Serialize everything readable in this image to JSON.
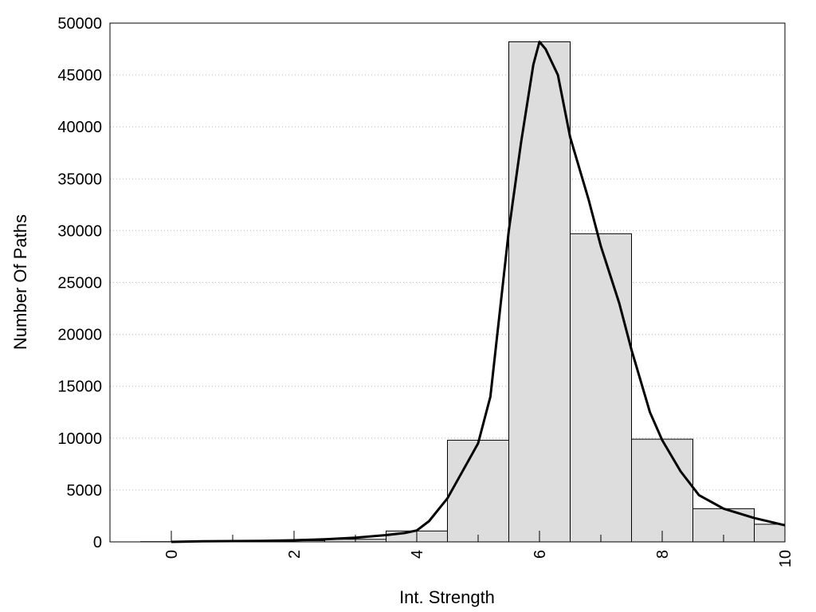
{
  "chart_data": {
    "type": "bar",
    "xlabel": "Int. Strength",
    "ylabel": "Number Of Paths",
    "xlim": [
      -1,
      10
    ],
    "ylim": [
      0,
      50000
    ],
    "xticks": [
      0,
      2,
      4,
      6,
      8,
      10
    ],
    "xtick_labels": [
      "0",
      "2",
      "4",
      "6",
      "8",
      "10"
    ],
    "yticks": [
      0,
      5000,
      10000,
      15000,
      20000,
      25000,
      30000,
      35000,
      40000,
      45000,
      50000
    ],
    "ytick_labels": [
      "0",
      "5000",
      "10000",
      "15000",
      "20000",
      "25000",
      "30000",
      "35000",
      "40000",
      "45000",
      "50000"
    ],
    "grid": "horizontal dotted",
    "bars": {
      "centers": [
        0,
        1,
        2,
        3,
        4,
        5,
        6,
        7,
        8,
        9,
        10
      ],
      "width": 1,
      "values": [
        20,
        60,
        120,
        250,
        1050,
        9800,
        48200,
        29700,
        9900,
        3200,
        1700
      ]
    },
    "curve": {
      "x": [
        0,
        0.5,
        1,
        1.5,
        2,
        2.5,
        3,
        3.5,
        3.8,
        4,
        4.2,
        4.5,
        5,
        5.2,
        5.5,
        5.7,
        5.9,
        6,
        6.1,
        6.3,
        6.5,
        6.8,
        7,
        7.3,
        7.5,
        7.8,
        8,
        8.3,
        8.6,
        9,
        9.5,
        10
      ],
      "y": [
        0,
        50,
        80,
        100,
        150,
        250,
        400,
        650,
        850,
        1100,
        2000,
        4200,
        9500,
        14000,
        30000,
        38500,
        46000,
        48200,
        47500,
        45000,
        39000,
        33000,
        28500,
        23000,
        18500,
        12500,
        9800,
        6800,
        4500,
        3200,
        2300,
        1600
      ],
      "color": "#000000"
    },
    "bar_fill": "#dddddd",
    "bar_stroke": "#000000"
  }
}
